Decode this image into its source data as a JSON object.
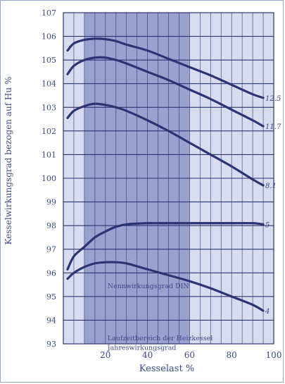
{
  "chart_data": {
    "type": "line",
    "title": "",
    "xlabel": "Kesselast %",
    "ylabel": "Kesselwirkungsgrad bezogen auf Hu %",
    "xlim": [
      0,
      100
    ],
    "ylim": [
      93,
      107
    ],
    "x_ticks": [
      20,
      40,
      60,
      80,
      100
    ],
    "y_ticks": [
      93,
      94,
      95,
      96,
      97,
      98,
      99,
      100,
      101,
      102,
      103,
      104,
      105,
      106,
      107
    ],
    "grid": true,
    "shaded_region": [
      10,
      60
    ],
    "annotations": [
      {
        "text": "Nennwirkungsgrad DIN",
        "x": 21,
        "y": 95.35
      },
      {
        "text": "Laufzeitbereich der Heizkessel",
        "x": 21,
        "y": 93.15
      },
      {
        "text": "Jahreswirkungsgrad",
        "x": 21,
        "y": 92.75
      }
    ],
    "series": [
      {
        "name": "12.5",
        "x": [
          2,
          5,
          10,
          15,
          20,
          25,
          30,
          40,
          50,
          60,
          70,
          80,
          90,
          95
        ],
        "values": [
          105.4,
          105.7,
          105.85,
          105.9,
          105.88,
          105.8,
          105.65,
          105.4,
          105.05,
          104.7,
          104.35,
          103.95,
          103.55,
          103.4
        ]
      },
      {
        "name": "11.7",
        "x": [
          2,
          5,
          10,
          15,
          20,
          25,
          30,
          40,
          50,
          60,
          70,
          80,
          90,
          95
        ],
        "values": [
          104.4,
          104.75,
          105.0,
          105.1,
          105.1,
          105.0,
          104.85,
          104.5,
          104.15,
          103.75,
          103.35,
          102.9,
          102.45,
          102.2
        ]
      },
      {
        "name": "8.1",
        "x": [
          2,
          5,
          10,
          15,
          20,
          25,
          30,
          40,
          50,
          60,
          70,
          80,
          90,
          95
        ],
        "values": [
          102.55,
          102.85,
          103.05,
          103.15,
          103.1,
          103.0,
          102.85,
          102.45,
          102.0,
          101.5,
          101.0,
          100.5,
          99.95,
          99.7
        ]
      },
      {
        "name": "5",
        "x": [
          2,
          5,
          10,
          15,
          20,
          25,
          30,
          40,
          50,
          60,
          70,
          80,
          90,
          95
        ],
        "values": [
          96.15,
          96.7,
          97.1,
          97.5,
          97.75,
          97.95,
          98.05,
          98.1,
          98.1,
          98.1,
          98.1,
          98.1,
          98.1,
          98.05
        ]
      },
      {
        "name": "4",
        "x": [
          2,
          5,
          10,
          15,
          20,
          25,
          30,
          40,
          50,
          60,
          70,
          80,
          90,
          95
        ],
        "values": [
          95.75,
          96.0,
          96.25,
          96.4,
          96.45,
          96.45,
          96.4,
          96.15,
          95.9,
          95.65,
          95.35,
          95.0,
          94.65,
          94.4
        ]
      }
    ]
  },
  "colors": {
    "line": "#2b3575",
    "grid": "#2b3575",
    "plot_bg": "#d8dcee",
    "shade": "#9aa1cf",
    "text": "#3d4a8a"
  }
}
